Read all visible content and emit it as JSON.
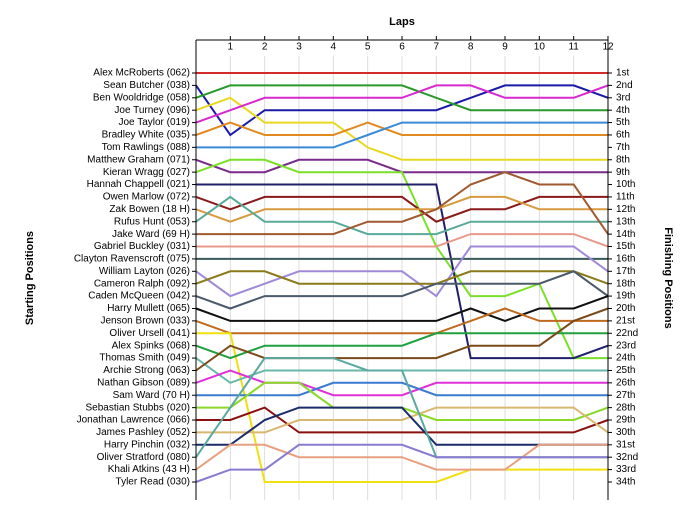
{
  "chart_data": {
    "type": "lap",
    "title": "Laps",
    "y_label": "Starting Positions",
    "y2_label": "Finishing Positions",
    "x": [
      0,
      1,
      2,
      3,
      4,
      5,
      6,
      7,
      8,
      9,
      10,
      11,
      12
    ],
    "xlim": [
      0,
      12
    ],
    "xticks": [
      1,
      2,
      3,
      4,
      5,
      6,
      7,
      8,
      9,
      10,
      11,
      12
    ],
    "ylim": [
      1,
      34
    ],
    "grid": true,
    "finish_labels": [
      "1st",
      "2nd",
      "3rd",
      "4th",
      "5th",
      "6th",
      "7th",
      "8th",
      "9th",
      "10th",
      "11th",
      "12th",
      "13th",
      "14th",
      "15th",
      "16th",
      "17th",
      "18th",
      "19th",
      "20th",
      "21st",
      "22nd",
      "23rd",
      "24th",
      "25th",
      "26th",
      "27th",
      "28th",
      "29th",
      "30th",
      "31st",
      "32nd",
      "33rd",
      "34th"
    ],
    "series": [
      {
        "name": "Alex McRoberts (062)",
        "color": "#d42a2a",
        "values": [
          1,
          1,
          1,
          1,
          1,
          1,
          1,
          1,
          1,
          1,
          1,
          1,
          1
        ]
      },
      {
        "name": "Sean Butcher (038)",
        "color": "#1a1aa8",
        "values": [
          2,
          6,
          4,
          4,
          4,
          4,
          4,
          4,
          3,
          2,
          2,
          2,
          3
        ]
      },
      {
        "name": "Ben Wooldridge (058)",
        "color": "#2a9a2a",
        "values": [
          3,
          2,
          2,
          2,
          2,
          2,
          2,
          3,
          4,
          4,
          4,
          4,
          4
        ]
      },
      {
        "name": "Joe Turney (096)",
        "color": "#e8d820",
        "values": [
          4,
          3,
          5,
          5,
          5,
          7,
          8,
          8,
          8,
          8,
          8,
          8,
          8
        ]
      },
      {
        "name": "Joe Taylor (019)",
        "color": "#d828d0",
        "values": [
          5,
          4,
          3,
          3,
          3,
          3,
          3,
          2,
          2,
          3,
          3,
          3,
          2
        ]
      },
      {
        "name": "Bradley White (035)",
        "color": "#e08a20",
        "values": [
          6,
          5,
          6,
          6,
          6,
          5,
          6,
          6,
          6,
          6,
          6,
          6,
          6
        ]
      },
      {
        "name": "Tom Rawlings (088)",
        "color": "#3a8ad8",
        "values": [
          7,
          7,
          7,
          7,
          7,
          6,
          5,
          5,
          5,
          5,
          5,
          5,
          5
        ]
      },
      {
        "name": "Matthew Graham (071)",
        "color": "#7a2a8a",
        "values": [
          8,
          9,
          9,
          8,
          8,
          8,
          9,
          9,
          9,
          9,
          9,
          9,
          9
        ]
      },
      {
        "name": "Kieran Wragg (027)",
        "color": "#7ae028",
        "values": [
          9,
          8,
          8,
          9,
          9,
          9,
          9,
          15,
          19,
          19,
          18,
          24,
          24
        ]
      },
      {
        "name": "Hannah Chappell (021)",
        "color": "#20206a",
        "values": [
          10,
          10,
          10,
          10,
          10,
          10,
          10,
          10,
          24,
          24,
          24,
          24,
          23
        ]
      },
      {
        "name": "Owen Marlow (072)",
        "color": "#8a1a1a",
        "values": [
          11,
          12,
          11,
          11,
          11,
          11,
          11,
          13,
          12,
          12,
          11,
          11,
          11
        ]
      },
      {
        "name": "Zak Bowen (18 H)",
        "color": "#d89a40",
        "values": [
          12,
          13,
          12,
          12,
          12,
          12,
          12,
          12,
          11,
          11,
          12,
          12,
          12
        ]
      },
      {
        "name": "Rufus Hunt (053)",
        "color": "#5aaa9a",
        "values": [
          13,
          11,
          13,
          13,
          13,
          14,
          14,
          14,
          13,
          13,
          13,
          13,
          13
        ]
      },
      {
        "name": "Jake Ward (69 H)",
        "color": "#a05a30",
        "values": [
          14,
          14,
          14,
          14,
          14,
          13,
          13,
          12,
          10,
          9,
          10,
          10,
          14
        ]
      },
      {
        "name": "Gabriel Buckley (031)",
        "color": "#e89a8a",
        "values": [
          15,
          15,
          15,
          15,
          15,
          15,
          15,
          15,
          14,
          14,
          14,
          14,
          15
        ]
      },
      {
        "name": "Clayton Ravenscroft (075)",
        "color": "#3a5a5a",
        "values": [
          16,
          16,
          16,
          16,
          16,
          16,
          16,
          16,
          16,
          16,
          16,
          16,
          16
        ]
      },
      {
        "name": "William Layton (026)",
        "color": "#a08ad8",
        "values": [
          17,
          19,
          18,
          17,
          17,
          17,
          17,
          19,
          15,
          15,
          15,
          15,
          17
        ]
      },
      {
        "name": "Cameron Ralph (092)",
        "color": "#8a7a1a",
        "values": [
          18,
          17,
          17,
          18,
          18,
          18,
          18,
          18,
          17,
          17,
          17,
          17,
          18
        ]
      },
      {
        "name": "Caden McQueen (042)",
        "color": "#4a5a6a",
        "values": [
          19,
          20,
          19,
          19,
          19,
          19,
          19,
          18,
          18,
          18,
          18,
          17,
          19
        ]
      },
      {
        "name": "Harry Mullett (065)",
        "color": "#101010",
        "values": [
          20,
          21,
          21,
          21,
          21,
          21,
          21,
          21,
          20,
          21,
          20,
          20,
          19
        ]
      },
      {
        "name": "Jenson Brown (033)",
        "color": "#c06a20",
        "values": [
          21,
          22,
          22,
          22,
          22,
          22,
          22,
          22,
          21,
          20,
          21,
          21,
          21
        ]
      },
      {
        "name": "Oliver Ursell (041)",
        "color": "#f0e010",
        "values": [
          22,
          22,
          34,
          34,
          34,
          34,
          34,
          34,
          33,
          33,
          33,
          33,
          33
        ]
      },
      {
        "name": "Alex Spinks (068)",
        "color": "#20a040",
        "values": [
          23,
          24,
          23,
          23,
          23,
          23,
          23,
          22,
          22,
          22,
          22,
          22,
          22
        ]
      },
      {
        "name": "Thomas Smith (049)",
        "color": "#6ab8a8",
        "values": [
          24,
          26,
          25,
          25,
          25,
          25,
          25,
          25,
          25,
          25,
          25,
          25,
          25
        ]
      },
      {
        "name": "Archie Strong (063)",
        "color": "#7a4a1a",
        "values": [
          25,
          23,
          24,
          24,
          24,
          24,
          24,
          24,
          23,
          23,
          23,
          21,
          20
        ]
      },
      {
        "name": "Nathan Gibson (089)",
        "color": "#e030d8",
        "values": [
          26,
          25,
          26,
          26,
          27,
          27,
          27,
          26,
          26,
          26,
          26,
          26,
          26
        ]
      },
      {
        "name": "Sam Ward (70 H)",
        "color": "#3a7ad0",
        "values": [
          27,
          27,
          27,
          27,
          26,
          26,
          26,
          27,
          27,
          27,
          27,
          27,
          27
        ]
      },
      {
        "name": "Sebastian Stubbs (020)",
        "color": "#8ad828",
        "values": [
          28,
          28,
          26,
          26,
          28,
          28,
          28,
          29,
          29,
          29,
          29,
          29,
          28
        ]
      },
      {
        "name": "Jonathan Lawrence (066)",
        "color": "#8a1010",
        "values": [
          29,
          29,
          28,
          30,
          30,
          30,
          30,
          30,
          30,
          30,
          30,
          30,
          29
        ]
      },
      {
        "name": "James Pashley (052)",
        "color": "#d8b870",
        "values": [
          30,
          30,
          30,
          29,
          29,
          29,
          29,
          28,
          28,
          28,
          28,
          28,
          30
        ]
      },
      {
        "name": "Harry Pinchin (032)",
        "color": "#1a2a6a",
        "values": [
          31,
          31,
          29,
          28,
          28,
          28,
          28,
          31,
          31,
          31,
          31,
          31,
          31
        ]
      },
      {
        "name": "Oliver Stratford (080)",
        "color": "#5aa8a0",
        "values": [
          32,
          28,
          24,
          24,
          24,
          25,
          25,
          32,
          32,
          32,
          32,
          32,
          32
        ]
      },
      {
        "name": "Khali Atkins (43 H)",
        "color": "#e8a080",
        "values": [
          33,
          31,
          31,
          32,
          32,
          32,
          32,
          33,
          33,
          33,
          31,
          31,
          31
        ]
      },
      {
        "name": "Tyler Read (030)",
        "color": "#8a7ad0",
        "values": [
          34,
          33,
          33,
          31,
          31,
          31,
          31,
          32,
          32,
          32,
          32,
          32,
          32
        ]
      }
    ]
  }
}
